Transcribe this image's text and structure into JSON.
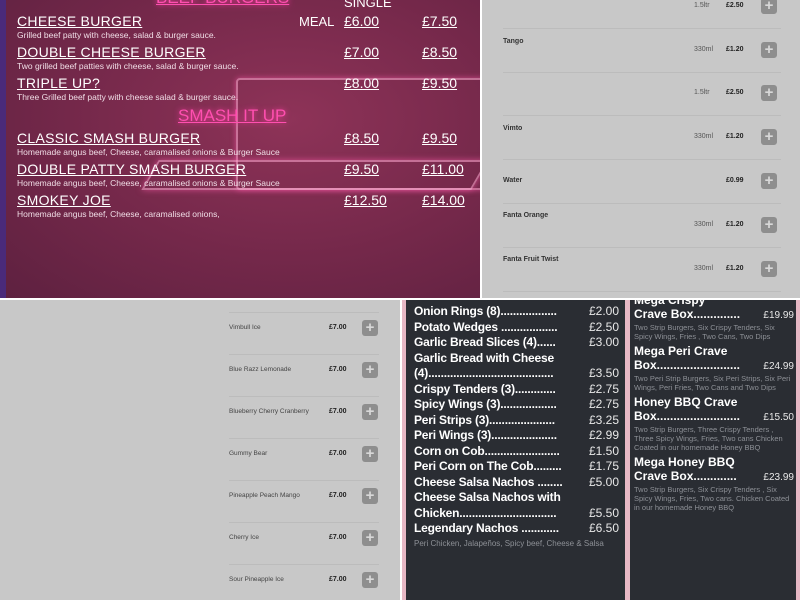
{
  "burgers": {
    "section_title": "BEEF BURGERS",
    "col_single": "SINGLE",
    "col_meal": "MEAL",
    "smash_title": "SMASH IT UP",
    "items": [
      {
        "name": "CHEESE BURGER",
        "desc": "Grilled beef patty with cheese, salad & burger sauce.",
        "single": "£6.00",
        "meal": "£7.50"
      },
      {
        "name": "DOUBLE CHEESE BURGER",
        "desc": "Two grilled beef patties with cheese, salad & burger sauce.",
        "single": "£7.00",
        "meal": "£8.50"
      },
      {
        "name": "TRIPLE UP?",
        "desc": "Three Grilled beef patty with cheese salad & burger sauce.",
        "single": "£8.00",
        "meal": "£9.50"
      },
      {
        "name": "CLASSIC SMASH BURGER",
        "desc": "Homemade angus beef, Cheese, caramalised onions & Burger Sauce",
        "single": "£8.50",
        "meal": "£9.50"
      },
      {
        "name": "DOUBLE PATTY SMASH BURGER",
        "desc": "Homemade angus beef, Cheese, caramalised onions & Burger Sauce",
        "single": "£9.50",
        "meal": "£11.00"
      },
      {
        "name": "SMOKEY JOE",
        "desc": "Homemade angus beef, Cheese, caramalised onions,",
        "single": "£12.50",
        "meal": "£14.00"
      }
    ]
  },
  "drinks": [
    {
      "name": "",
      "size": "1.5ltr",
      "price": "£2.50"
    },
    {
      "name": "Tango",
      "size": "330ml",
      "price": "£1.20"
    },
    {
      "name": "",
      "size": "1.5ltr",
      "price": "£2.50"
    },
    {
      "name": "Vimto",
      "size": "330ml",
      "price": "£1.20"
    },
    {
      "name": "Water",
      "size": "",
      "price": "£0.99"
    },
    {
      "name": "Fanta Orange",
      "size": "330ml",
      "price": "£1.20"
    },
    {
      "name": "Fanta Fruit Twist",
      "size": "330ml",
      "price": "£1.20"
    }
  ],
  "slush": [
    {
      "name": "Vimbull Ice",
      "price": "£7.00"
    },
    {
      "name": "Blue Razz Lemonade",
      "price": "£7.00"
    },
    {
      "name": "Blueberry Cherry Cranberry",
      "price": "£7.00"
    },
    {
      "name": "Gummy Bear",
      "price": "£7.00"
    },
    {
      "name": "Pineapple Peach Mango",
      "price": "£7.00"
    },
    {
      "name": "Cherry Ice",
      "price": "£7.00"
    },
    {
      "name": "Sour Pineapple Ice",
      "price": "£7.00"
    }
  ],
  "sides": [
    {
      "name": "Onion Rings (8)..................",
      "price": "£2.00"
    },
    {
      "name": "Potato Wedges ..................",
      "price": "£2.50"
    },
    {
      "name": "Garlic Bread Slices (4)......",
      "price": "£3.00"
    },
    {
      "name": "Garlic Bread with Cheese",
      "price": ""
    },
    {
      "name": "(4)........................................",
      "price": "£3.50"
    },
    {
      "name": "Crispy Tenders (3).............",
      "price": "£2.75"
    },
    {
      "name": "Spicy Wings (3)..................",
      "price": "£2.75"
    },
    {
      "name": "Peri Strips (3).....................",
      "price": "£3.25"
    },
    {
      "name": "Peri Wings (3).....................",
      "price": "£2.99"
    },
    {
      "name": "Corn on Cob........................",
      "price": "£1.50"
    },
    {
      "name": "Peri Corn on The Cob.........",
      "price": "£1.75"
    },
    {
      "name": "Cheese Salsa Nachos ........",
      "price": "£5.00"
    },
    {
      "name": "Cheese Salsa Nachos with",
      "price": ""
    },
    {
      "name": "Chicken...............................",
      "price": "£5.50"
    },
    {
      "name": "Legendary Nachos ............",
      "price": "£6.50"
    }
  ],
  "sides_note": "Peri Chicken, Jalapeños, Spicy beef, Cheese & Salsa",
  "boxes": [
    {
      "line1": "Mega Crispy",
      "line2": "Crave Box..............",
      "price": "£19.99",
      "desc": "Two Strip Burgers, Six Crispy Tenders, Six Spicy Wings, Fries , Two Cans, Two Dips"
    },
    {
      "line1": "Mega Peri Crave",
      "line2": "Box.........................",
      "price": "£24.99",
      "desc": "Two Peri Strip Burgers, Six Peri Strips, Six Peri Wings, Peri Fries, Two Cans and Two Dips"
    },
    {
      "line1": "Honey BBQ Crave",
      "line2": "Box.........................",
      "price": "£15.50",
      "desc": "Two Strip Burgers, Three Crispy Tenders , Three Spicy Wings, Fries, Two cans Chicken Coated in our homemade Honey BBQ"
    },
    {
      "line1": "Mega Honey BBQ",
      "line2": "Crave Box.............",
      "price": "£23.99",
      "desc": "Two Strip Burgers, Six Crispy Tenders , Six Spicy Wings, Fries, Two cans. Chicken Coated in our homemade Honey BBQ"
    }
  ],
  "colors": {
    "neon_pink": "#ff4fb0",
    "burger_bg": "#74284a",
    "list_bg": "#c8c8c8",
    "add_button": "#8e8e8e",
    "sides_bg": "#2a2d33"
  }
}
